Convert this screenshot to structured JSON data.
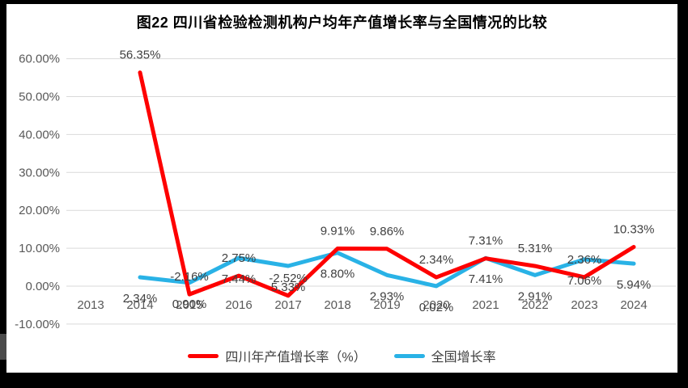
{
  "window": {
    "background": "#000000",
    "page_background": "#ffffff"
  },
  "chart_data": {
    "type": "line",
    "title": "图22  四川省检验检测机构户均年产值增长率与全国情况的比较",
    "categories": [
      "2013",
      "2014",
      "2015",
      "2016",
      "2017",
      "2018",
      "2019",
      "2020",
      "2021",
      "2022",
      "2023",
      "2024"
    ],
    "series": [
      {
        "name": "四川年产值增长率（%）",
        "color": "#fe0000",
        "label_position": "above",
        "values": [
          null,
          56.35,
          -2.16,
          2.75,
          -2.52,
          9.91,
          9.86,
          2.34,
          7.31,
          5.31,
          2.36,
          10.33
        ],
        "labels": [
          null,
          "56.35%",
          "-2.16%",
          "2.75%",
          "-2.52%",
          "9.91%",
          "9.86%",
          "2.34%",
          "7.31%",
          "5.31%",
          "2.36%",
          "10.33%"
        ]
      },
      {
        "name": "全国增长率",
        "color": "#29b2e6",
        "label_position": "below",
        "values": [
          null,
          2.34,
          0.9,
          7.44,
          5.33,
          8.8,
          2.93,
          0.02,
          7.41,
          2.91,
          7.06,
          5.94
        ],
        "labels": [
          null,
          "2.34%",
          "0.90%",
          "7.44%",
          "5.33%",
          "8.80%",
          "2.93%",
          "0.02%",
          "7.41%",
          "2.91%",
          "7.06%",
          "5.94%"
        ]
      }
    ],
    "y_axis": {
      "min": -10,
      "max": 60,
      "ticks": [
        {
          "label": "60.00%",
          "value": 60
        },
        {
          "label": "50.00%",
          "value": 50
        },
        {
          "label": "40.00%",
          "value": 40
        },
        {
          "label": "30.00%",
          "value": 30
        },
        {
          "label": "20.00%",
          "value": 20
        },
        {
          "label": "10.00%",
          "value": 10
        },
        {
          "label": "0.00%",
          "value": 0
        },
        {
          "label": "-10.00%",
          "value": -10
        }
      ]
    },
    "grid": true,
    "legend_position": "bottom",
    "colors": {
      "grid": "#d9d9d9",
      "axis_text": "#595959",
      "data_label_text": "#404040",
      "title_text": "#000000",
      "legend_text": "#404040"
    }
  }
}
